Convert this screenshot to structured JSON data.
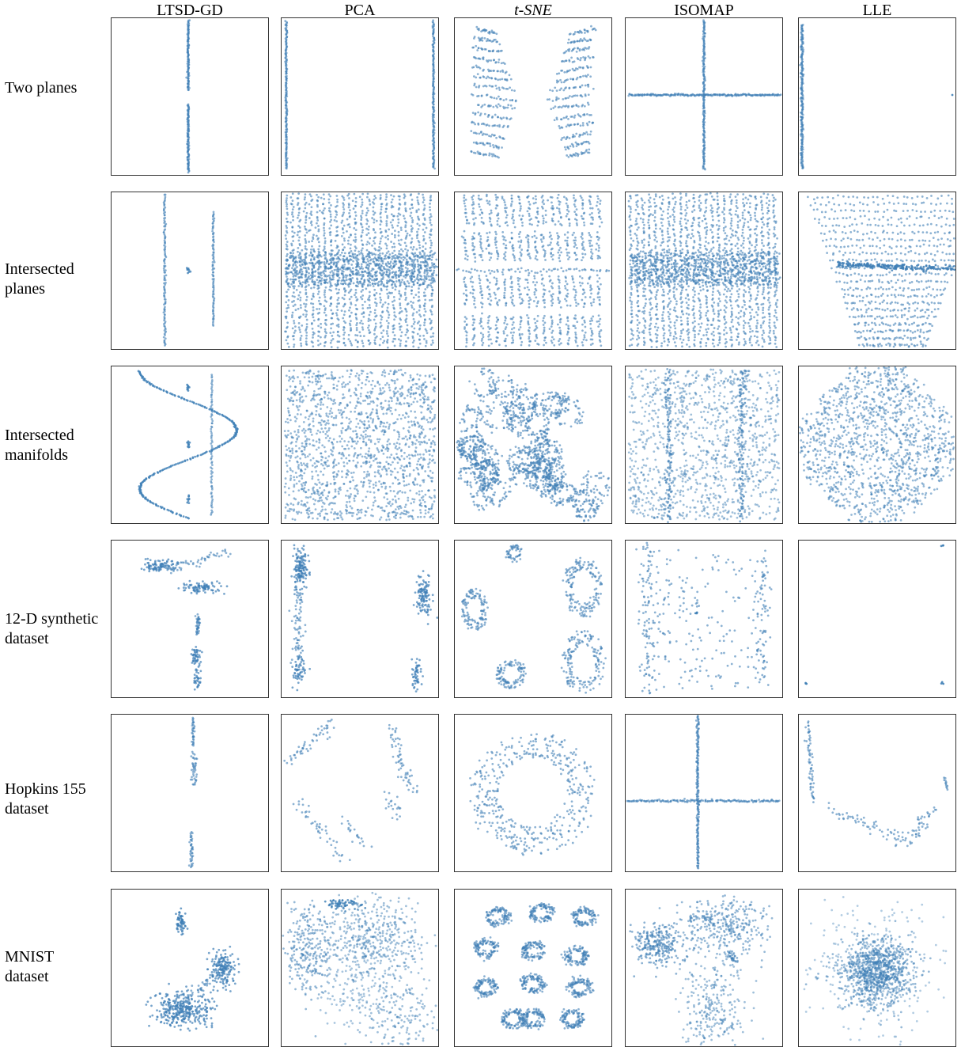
{
  "columns": [
    "LTSD-GD",
    "PCA",
    "t-SNE",
    "ISOMAP",
    "LLE"
  ],
  "rows": [
    "Two  planes",
    "Intersected\nplanes",
    "Intersected\nmanifolds",
    "12-D synthetic\ndataset",
    "Hopkins 155\ndataset",
    "MNIST\ndataset"
  ],
  "point_color": "#3f7fb6",
  "chart_data": {
    "type": "scatter",
    "layout": "grid of 6 rows x 5 columns",
    "axes": "none",
    "grid": false,
    "legend": "none",
    "panels_note": "each panel is a 2-D embedding scatter plot of the row dataset by the column method"
  }
}
